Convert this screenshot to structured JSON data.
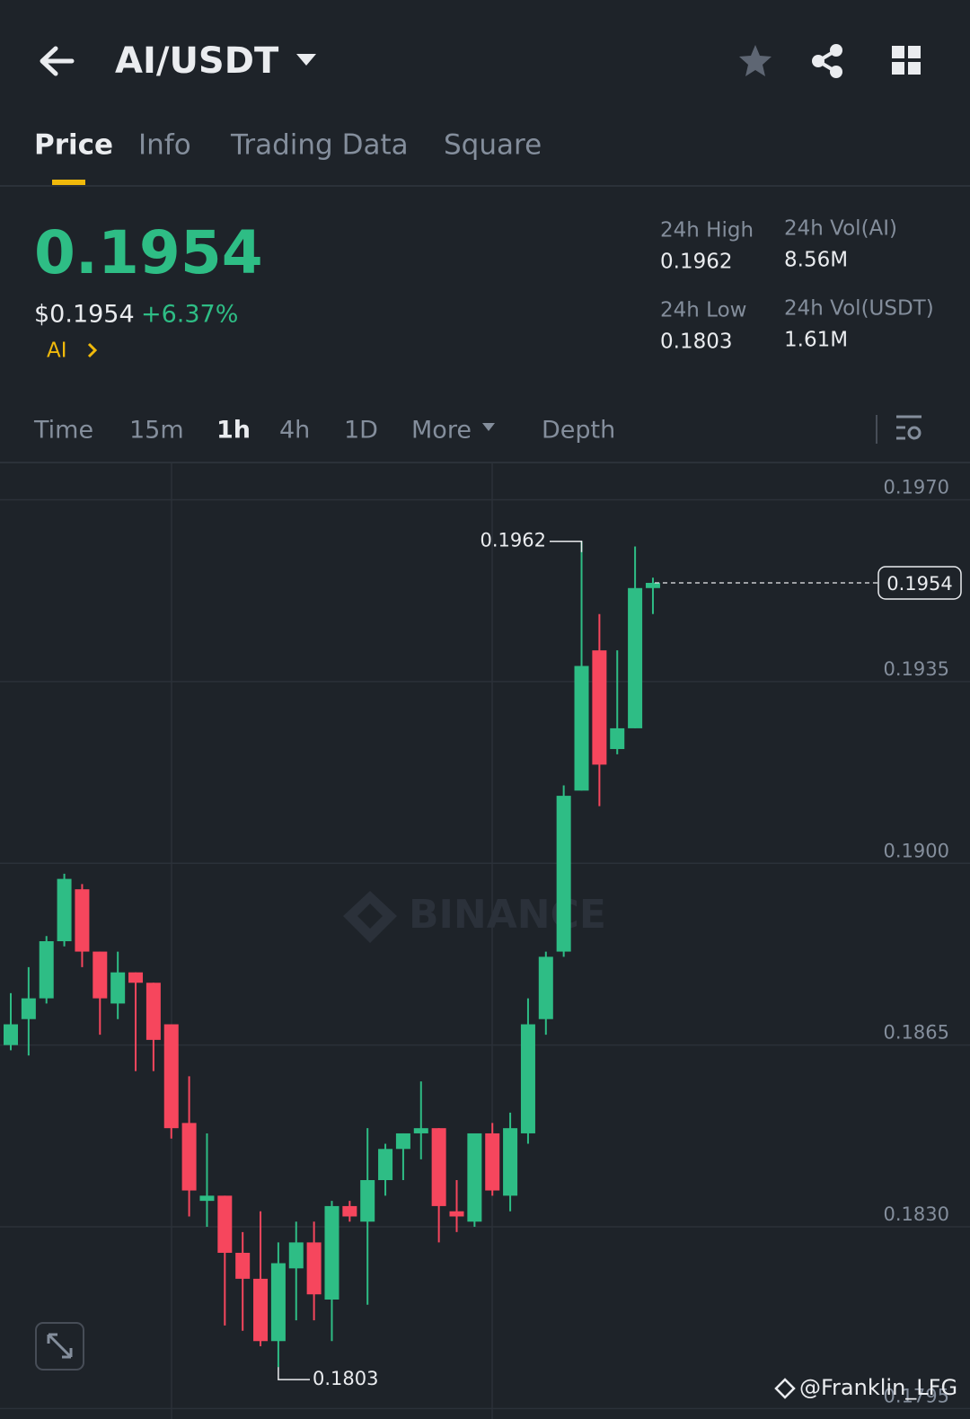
{
  "header": {
    "pair": "AI/USDT"
  },
  "tabs": [
    "Price",
    "Info",
    "Trading Data",
    "Square"
  ],
  "ticker": {
    "last_price": "0.1954",
    "usd_price": "$0.1954",
    "change": "+6.37%",
    "base_asset": "AI"
  },
  "stats": [
    {
      "label": "24h High",
      "value": "0.1962"
    },
    {
      "label": "24h Low",
      "value": "0.1803"
    },
    {
      "label": "24h Vol(AI)",
      "value": "8.56M"
    },
    {
      "label": "24h Vol(USDT)",
      "value": "1.61M"
    }
  ],
  "intervals": [
    "Time",
    "15m",
    "1h",
    "4h",
    "1D",
    "More",
    "Depth"
  ],
  "chart_data": {
    "type": "candlestick",
    "open": [
      0.1865,
      0.187,
      0.1874,
      0.1885,
      0.1895,
      0.1883,
      0.1873,
      0.1879,
      0.1877,
      0.1869,
      0.185,
      0.1835,
      0.1836,
      0.1825,
      0.182,
      0.1808,
      0.1822,
      0.1827,
      0.1816,
      0.1834,
      0.1831,
      0.1839,
      0.1845,
      0.1848,
      0.1849,
      0.1833,
      0.1831,
      0.1848,
      0.1836,
      0.1848,
      0.187,
      0.1883,
      0.1914,
      0.1941,
      0.1922,
      0.1926,
      0.1953
    ],
    "high": [
      0.1875,
      0.188,
      0.1886,
      0.1898,
      0.1896,
      0.1883,
      0.1883,
      0.1879,
      0.1877,
      0.1869,
      0.1859,
      0.1848,
      0.1836,
      0.1829,
      0.1833,
      0.1827,
      0.1831,
      0.1831,
      0.1835,
      0.1835,
      0.1849,
      0.1846,
      0.1848,
      0.1858,
      0.1849,
      0.1839,
      0.1848,
      0.185,
      0.1852,
      0.1874,
      0.1883,
      0.1915,
      0.1962,
      0.1948,
      0.1941,
      0.1961,
      0.1955
    ],
    "low": [
      0.1864,
      0.1863,
      0.1873,
      0.1884,
      0.188,
      0.1867,
      0.187,
      0.186,
      0.186,
      0.1847,
      0.1832,
      0.183,
      0.1811,
      0.181,
      0.1807,
      0.1803,
      0.1812,
      0.1812,
      0.1808,
      0.1831,
      0.1815,
      0.1836,
      0.1839,
      0.1843,
      0.1827,
      0.1829,
      0.183,
      0.1836,
      0.1833,
      0.1846,
      0.1867,
      0.1882,
      0.1914,
      0.1911,
      0.1921,
      0.1926,
      0.1948
    ],
    "close": [
      0.1869,
      0.1874,
      0.1885,
      0.1897,
      0.1883,
      0.1874,
      0.1879,
      0.1877,
      0.1866,
      0.1849,
      0.1837,
      0.1836,
      0.1825,
      0.182,
      0.1808,
      0.1823,
      0.1827,
      0.1817,
      0.1834,
      0.1832,
      0.1839,
      0.1845,
      0.1848,
      0.1849,
      0.1834,
      0.1832,
      0.1848,
      0.1837,
      0.1849,
      0.1869,
      0.1882,
      0.1913,
      0.1938,
      0.1919,
      0.1926,
      0.1953,
      0.1954
    ],
    "up_color": "#2ebd85",
    "down_color": "#f6465d",
    "ylim": [
      0.1793,
      0.1977
    ],
    "yticks": [
      {
        "value": 0.197,
        "label": "0.1970"
      },
      0.1935,
      {
        "value": 0.19,
        "label": "0.1900"
      },
      0.1865,
      {
        "value": 0.183,
        "label": "0.1830"
      },
      0.1795
    ],
    "grid": true,
    "high_marker": 0.1962,
    "low_marker": 0.1803,
    "last_price": 0.1954,
    "watermark": "BINANCE"
  },
  "user_watermark": "@Franklin_LFG"
}
